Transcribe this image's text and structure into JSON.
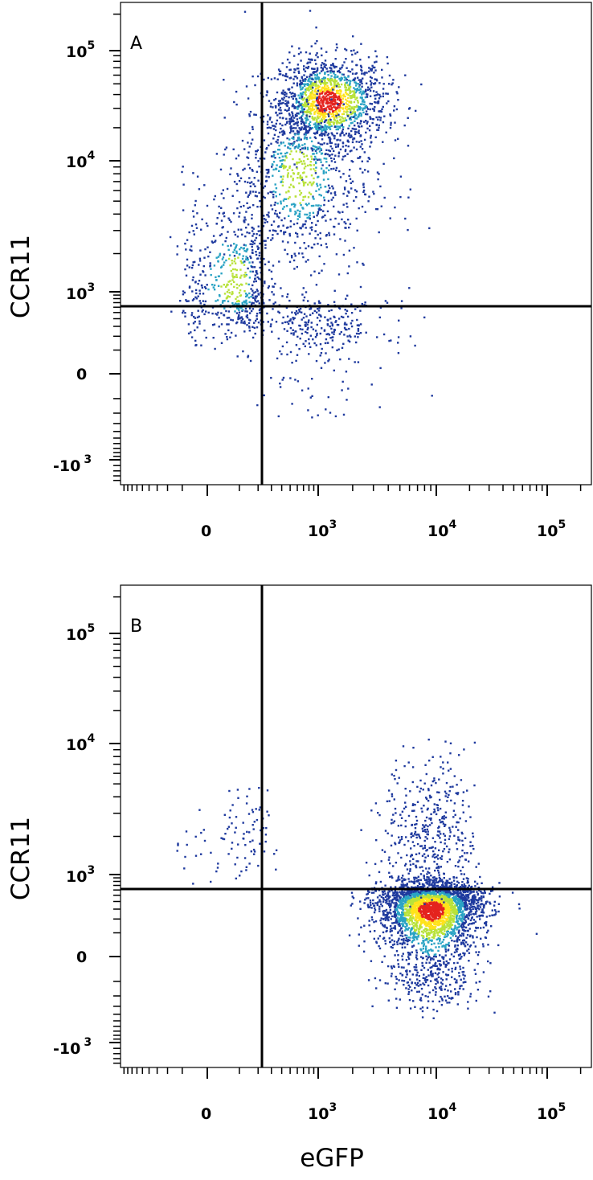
{
  "figure": {
    "xlabel": "eGFP",
    "ylabel": "CCR11",
    "tick_labels": {
      "x": [
        {
          "base": "0",
          "exp": ""
        },
        {
          "base": "10",
          "exp": "3"
        },
        {
          "base": "10",
          "exp": "4"
        },
        {
          "base": "10",
          "exp": "5"
        }
      ],
      "y": [
        {
          "base": "10",
          "exp": "5"
        },
        {
          "base": "10",
          "exp": "4"
        },
        {
          "base": "10",
          "exp": "3"
        },
        {
          "base": "0",
          "exp": ""
        },
        {
          "base": "-10",
          "exp": "3"
        }
      ]
    }
  },
  "chart_data": [
    {
      "type": "scatter",
      "panel_label": "A",
      "xlabel": "",
      "ylabel": "CCR11",
      "x_scale": "biexponential",
      "y_scale": "biexponential",
      "xlim": [
        -1000,
        250000
      ],
      "ylim": [
        -1500,
        250000
      ],
      "x_ticks": [
        0,
        1000,
        10000,
        100000
      ],
      "y_ticks": [
        100000,
        10000,
        1000,
        0,
        -1000
      ],
      "quadrant_gates": {
        "x": 300,
        "y": 750
      },
      "colormap": [
        "#1f3a9e",
        "#2aa3c4",
        "#b8e23a",
        "#ffe21a",
        "#e4231e"
      ],
      "populations": [
        {
          "x_center": 1200,
          "y_center": 35000,
          "x_spread_log": 0.25,
          "y_spread_log": 0.2,
          "density": 1.0
        },
        {
          "x_center": 600,
          "y_center": 8000,
          "x_spread_log": 0.35,
          "y_spread_log": 0.4,
          "density": 0.6
        },
        {
          "x_center": 80,
          "y_center": 1200,
          "x_spread_log": 0.2,
          "y_spread_log": 0.4,
          "density": 0.4
        },
        {
          "x_center": 1000,
          "y_center": 300,
          "x_spread_log": 0.3,
          "y_spread_log": 0.3,
          "density": 0.2
        }
      ]
    },
    {
      "type": "scatter",
      "panel_label": "B",
      "xlabel": "eGFP",
      "ylabel": "CCR11",
      "x_scale": "biexponential",
      "y_scale": "biexponential",
      "xlim": [
        -1000,
        250000
      ],
      "ylim": [
        -1500,
        250000
      ],
      "x_ticks": [
        0,
        1000,
        10000,
        100000
      ],
      "y_ticks": [
        100000,
        10000,
        1000,
        0,
        -1000
      ],
      "quadrant_gates": {
        "x": 300,
        "y": 750
      },
      "colormap": [
        "#1f3a9e",
        "#2aa3c4",
        "#b8e23a",
        "#ffe21a",
        "#e4231e"
      ],
      "populations": [
        {
          "x_center": 9000,
          "y_center": 300,
          "x_spread_log": 0.22,
          "y_spread_log": 0.2,
          "density": 1.0
        },
        {
          "x_center": 9000,
          "y_center": 2000,
          "x_spread_log": 0.2,
          "y_spread_log": 0.3,
          "density": 0.15
        },
        {
          "x_center": 80,
          "y_center": 1800,
          "x_spread_log": 0.12,
          "y_spread_log": 0.2,
          "density": 0.03
        }
      ]
    }
  ]
}
